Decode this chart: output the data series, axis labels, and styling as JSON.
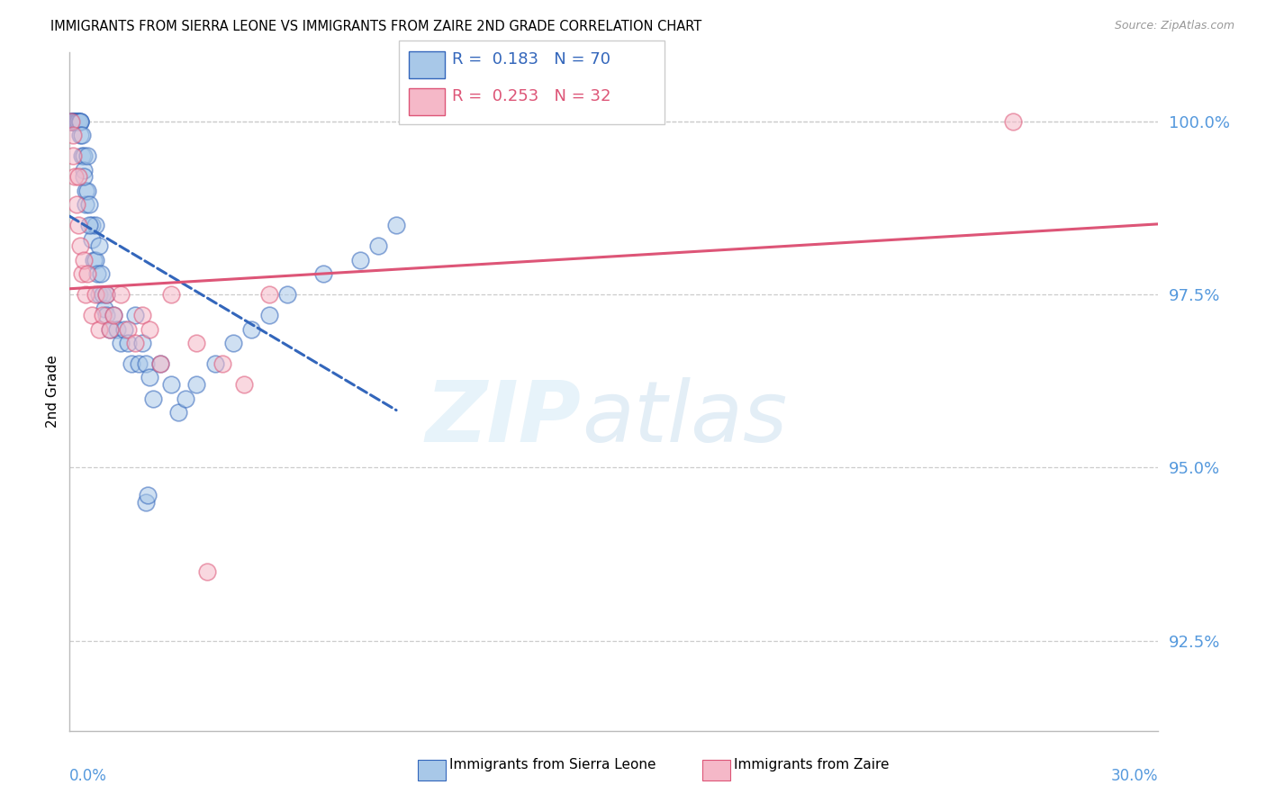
{
  "title": "IMMIGRANTS FROM SIERRA LEONE VS IMMIGRANTS FROM ZAIRE 2ND GRADE CORRELATION CHART",
  "source": "Source: ZipAtlas.com",
  "ylabel": "2nd Grade",
  "yticks": [
    92.5,
    95.0,
    97.5,
    100.0
  ],
  "xlim": [
    0.0,
    30.0
  ],
  "ylim": [
    91.2,
    101.0
  ],
  "legend_blue_r": "0.183",
  "legend_blue_n": "70",
  "legend_pink_r": "0.253",
  "legend_pink_n": "32",
  "blue_color": "#a8c8e8",
  "pink_color": "#f5b8c8",
  "blue_line_color": "#3366bb",
  "pink_line_color": "#dd5577",
  "blue_scatter_x": [
    0.05,
    0.05,
    0.08,
    0.1,
    0.1,
    0.12,
    0.15,
    0.15,
    0.2,
    0.2,
    0.22,
    0.25,
    0.25,
    0.28,
    0.3,
    0.3,
    0.3,
    0.35,
    0.35,
    0.4,
    0.4,
    0.45,
    0.45,
    0.5,
    0.5,
    0.55,
    0.6,
    0.6,
    0.65,
    0.7,
    0.7,
    0.75,
    0.8,
    0.8,
    0.85,
    0.9,
    0.95,
    1.0,
    1.0,
    1.1,
    1.2,
    1.3,
    1.4,
    1.5,
    1.6,
    1.7,
    1.8,
    1.9,
    2.0,
    2.1,
    2.2,
    2.3,
    2.5,
    2.8,
    3.0,
    3.2,
    3.5,
    4.0,
    4.5,
    5.0,
    5.5,
    6.0,
    7.0,
    8.0,
    8.5,
    9.0,
    2.1,
    2.15,
    0.4,
    0.55
  ],
  "blue_scatter_y": [
    100.0,
    100.0,
    100.0,
    100.0,
    100.0,
    100.0,
    100.0,
    100.0,
    100.0,
    100.0,
    100.0,
    100.0,
    100.0,
    100.0,
    100.0,
    100.0,
    99.8,
    99.8,
    99.5,
    99.5,
    99.3,
    99.0,
    98.8,
    99.5,
    99.0,
    98.8,
    98.5,
    98.3,
    98.0,
    98.5,
    98.0,
    97.8,
    98.2,
    97.5,
    97.8,
    97.5,
    97.3,
    97.5,
    97.2,
    97.0,
    97.2,
    97.0,
    96.8,
    97.0,
    96.8,
    96.5,
    97.2,
    96.5,
    96.8,
    96.5,
    96.3,
    96.0,
    96.5,
    96.2,
    95.8,
    96.0,
    96.2,
    96.5,
    96.8,
    97.0,
    97.2,
    97.5,
    97.8,
    98.0,
    98.2,
    98.5,
    94.5,
    94.6,
    99.2,
    98.5
  ],
  "pink_scatter_x": [
    0.05,
    0.08,
    0.1,
    0.15,
    0.2,
    0.25,
    0.3,
    0.35,
    0.4,
    0.45,
    0.5,
    0.6,
    0.7,
    0.8,
    0.9,
    1.0,
    1.1,
    1.2,
    1.4,
    1.6,
    1.8,
    2.0,
    2.2,
    2.5,
    2.8,
    3.5,
    3.8,
    4.2,
    4.8,
    5.5,
    26.0,
    0.25
  ],
  "pink_scatter_y": [
    100.0,
    99.8,
    99.5,
    99.2,
    98.8,
    98.5,
    98.2,
    97.8,
    98.0,
    97.5,
    97.8,
    97.2,
    97.5,
    97.0,
    97.2,
    97.5,
    97.0,
    97.2,
    97.5,
    97.0,
    96.8,
    97.2,
    97.0,
    96.5,
    97.5,
    96.8,
    93.5,
    96.5,
    96.2,
    97.5,
    100.0,
    99.2
  ]
}
